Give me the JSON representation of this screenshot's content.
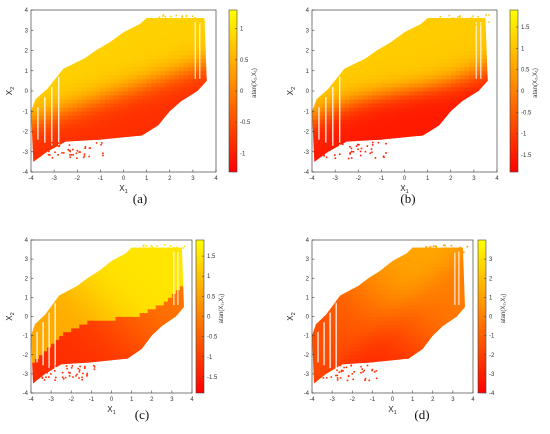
{
  "chart_data": [
    {
      "type": "heatmap",
      "panel_label": "(a)",
      "xlabel": "X",
      "xlabel_sub": "1",
      "ylabel": "X",
      "ylabel_sub": "2",
      "colorbar_label": "atan(X₂,X₁)",
      "xlim": [
        -4,
        4
      ],
      "ylim": [
        -4,
        4
      ],
      "x_ticks": [
        -4,
        -3,
        -2,
        -1,
        0,
        1,
        2,
        3,
        4
      ],
      "y_ticks": [
        -4,
        -3,
        -2,
        -1,
        0,
        1,
        2,
        3,
        4
      ],
      "clim": [
        -1.3,
        1.3
      ],
      "colorbar_ticks": [
        -1,
        -0.5,
        0,
        0.5,
        1
      ],
      "colormap": [
        "#ff0000",
        "#ffff00"
      ],
      "region": "band around the diagonal line X2 = X1 spanning X1 from about -4 to 3.6",
      "pattern": "smooth red-to-yellow transition across the band"
    },
    {
      "type": "heatmap",
      "panel_label": "(b)",
      "xlabel": "X",
      "xlabel_sub": "1",
      "ylabel": "X",
      "ylabel_sub": "2",
      "colorbar_label": "atan(X₂,X₁)",
      "xlim": [
        -4,
        4
      ],
      "ylim": [
        -4,
        4
      ],
      "x_ticks": [
        -4,
        -3,
        -2,
        -1,
        0,
        1,
        2,
        3,
        4
      ],
      "y_ticks": [
        -4,
        -3,
        -2,
        -1,
        0,
        1,
        2,
        3,
        4
      ],
      "clim": [
        -1.9,
        1.9
      ],
      "colorbar_ticks": [
        -1.5,
        -1,
        -0.5,
        0,
        0.5,
        1,
        1.5
      ],
      "colormap": [
        "#ff0000",
        "#ffff00"
      ],
      "region": "band around the diagonal line X2 = X1 spanning X1 from about -4 to 3.6",
      "pattern": "smooth red-to-yellow transition with a curved boundary"
    },
    {
      "type": "heatmap",
      "panel_label": "(c)",
      "xlabel": "X",
      "xlabel_sub": "1",
      "ylabel": "X",
      "ylabel_sub": "2",
      "colorbar_label": "atan(X₂,X₁)",
      "xlim": [
        -4,
        4
      ],
      "ylim": [
        -4,
        4
      ],
      "x_ticks": [
        -4,
        -3,
        -2,
        -1,
        0,
        1,
        2,
        3,
        4
      ],
      "y_ticks": [
        -4,
        -3,
        -2,
        -1,
        0,
        1,
        2,
        3,
        4
      ],
      "clim": [
        -1.9,
        1.9
      ],
      "colorbar_ticks": [
        -1.5,
        -1,
        -0.5,
        0,
        0.5,
        1,
        1.5
      ],
      "colormap": [
        "#ff0000",
        "#ffff00"
      ],
      "region": "band around the diagonal line X2 = X1 spanning X1 from about -4 to 3.6",
      "pattern": "sharp S-shaped boundary between an orange-red lower part and a yellow upper part"
    },
    {
      "type": "heatmap",
      "panel_label": "(d)",
      "xlabel": "X",
      "xlabel_sub": "1",
      "ylabel": "X",
      "ylabel_sub": "2",
      "colorbar_label": "atan(X₂,X₁)",
      "xlim": [
        -4,
        4
      ],
      "ylim": [
        -4,
        4
      ],
      "x_ticks": [
        -4,
        -3,
        -2,
        -1,
        0,
        1,
        2,
        3,
        4
      ],
      "y_ticks": [
        -4,
        -3,
        -2,
        -1,
        0,
        1,
        2,
        3,
        4
      ],
      "clim": [
        -4,
        4
      ],
      "colorbar_ticks": [
        -4,
        -3,
        -2,
        -1,
        0,
        1,
        2,
        3
      ],
      "colormap": [
        "#ff0000",
        "#ffff00"
      ],
      "region": "band around the diagonal line X2 = X1 spanning X1 from about -4 to 3.6",
      "pattern": "mostly orange with a gradient along the band"
    }
  ]
}
